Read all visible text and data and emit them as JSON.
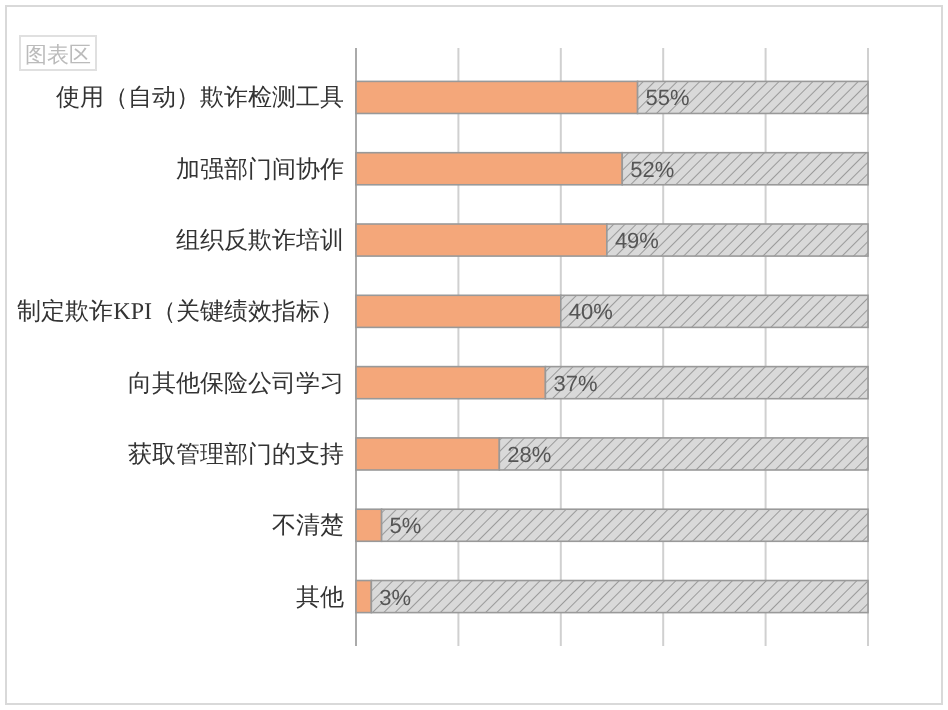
{
  "chart_data": {
    "type": "bar",
    "orientation": "horizontal",
    "stacked": true,
    "categories": [
      "使用（自动）欺诈检测工具",
      "加强部门间协作",
      "组织反欺诈培训",
      "制定欺诈KPI（关键绩效指标）",
      "向其他保险公司学习",
      "获取管理部门的支持",
      "不清楚",
      "其他"
    ],
    "series": [
      {
        "color": "#f4a77a",
        "values": [
          55,
          52,
          49,
          40,
          37,
          28,
          5,
          3
        ],
        "value_labels": [
          "55%",
          "52%",
          "49%",
          "40%",
          "37%",
          "28%",
          "5%",
          "3%"
        ]
      },
      {
        "color": "#d9d9d9",
        "values": [
          45,
          48,
          51,
          60,
          63,
          72,
          95,
          97
        ]
      }
    ],
    "grid": "x",
    "tick_labels": "y",
    "annotations": [
      "图表区"
    ]
  }
}
